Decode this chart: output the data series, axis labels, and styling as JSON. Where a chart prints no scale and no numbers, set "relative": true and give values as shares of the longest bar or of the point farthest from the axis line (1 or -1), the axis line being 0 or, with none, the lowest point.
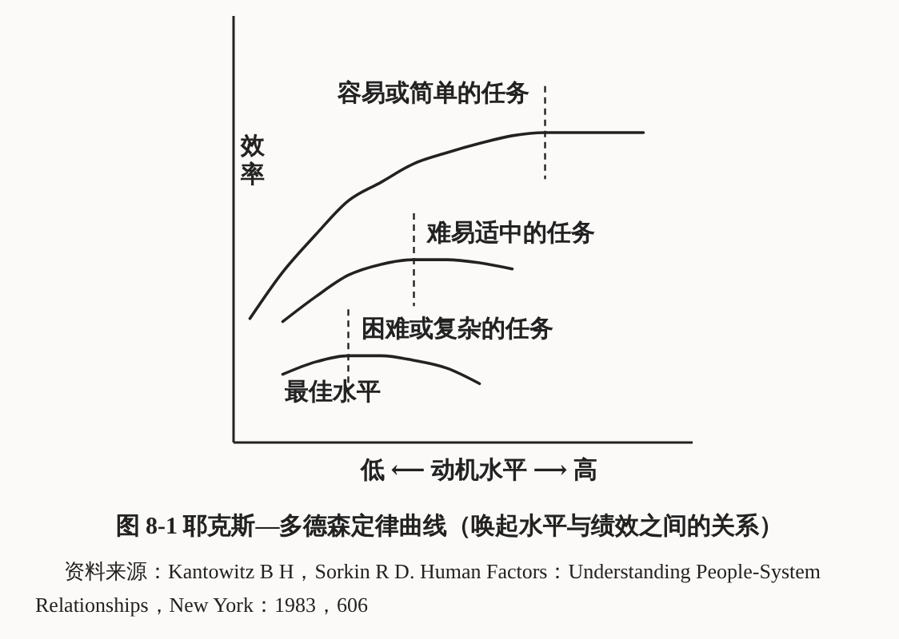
{
  "chart_data": {
    "type": "line",
    "relative": true,
    "title": "图 8-1 耶克斯—多德森定律曲线（唤起水平与绩效之间的关系）",
    "xlabel": "低 ⟵ 动机水平 ⟶ 高",
    "ylabel": "效率",
    "line_style": "solid",
    "categories": [
      null,
      null,
      null,
      null,
      null,
      null,
      null,
      null,
      null,
      null,
      null,
      null,
      null,
      null
    ],
    "series": [
      {
        "name": "容易或简单的任务",
        "color": "#222222",
        "values": [
          0.4,
          0.55,
          0.67,
          0.78,
          0.84,
          0.9,
          0.935,
          0.965,
          0.99,
          1,
          1,
          1,
          1,
          null
        ]
      },
      {
        "name": "难易适中的任务",
        "color": "#222222",
        "values": [
          null,
          0.39,
          0.47,
          0.54,
          0.575,
          0.59,
          0.59,
          0.58,
          0.56,
          null,
          null,
          null,
          null,
          null
        ]
      },
      {
        "name": "困难或复杂的任务",
        "color": "#222222",
        "values": [
          null,
          0.22,
          0.26,
          0.28,
          0.28,
          0.265,
          0.24,
          0.19,
          null,
          null,
          null,
          null,
          null,
          null
        ]
      }
    ],
    "annotations": [
      "最佳水平",
      "资料来源：Kantowitz B H，Sorkin R D. Human Factors：Understanding People-System Relationships，New York：1983，606"
    ]
  }
}
